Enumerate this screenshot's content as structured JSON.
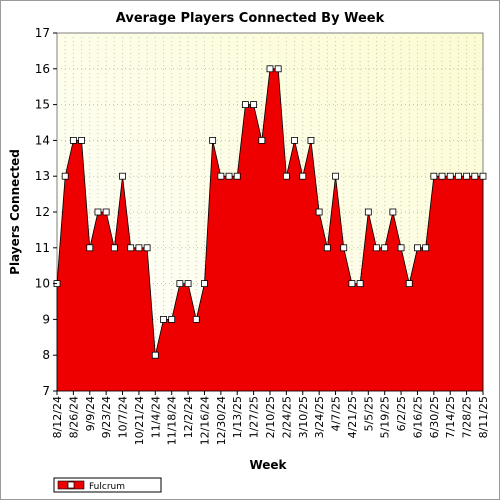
{
  "chart_data": {
    "type": "area",
    "title": "Average Players Connected By Week",
    "xlabel": "Week",
    "ylabel": "Players Connected",
    "ylim": [
      7,
      17
    ],
    "yticks": [
      7,
      8,
      9,
      10,
      11,
      12,
      13,
      14,
      15,
      16,
      17
    ],
    "grid": true,
    "legend_position": "bottom-left",
    "xtick_labels": [
      "8/12/24",
      "8/26/24",
      "9/9/24",
      "9/23/24",
      "10/7/24",
      "10/21/24",
      "11/4/24",
      "11/18/24",
      "12/2/24",
      "12/16/24",
      "12/30/24",
      "1/13/25",
      "1/27/25",
      "2/10/25",
      "2/24/25",
      "3/10/25",
      "3/24/25",
      "4/7/25",
      "4/21/25",
      "5/5/25",
      "5/19/25",
      "6/2/25",
      "6/16/25",
      "6/30/25",
      "7/14/25",
      "7/28/25",
      "8/11/25"
    ],
    "series": [
      {
        "name": "Fulcrum",
        "color": "#ee0000",
        "values": [
          10,
          13,
          14,
          14,
          11,
          12,
          12,
          11,
          13,
          11,
          11,
          11,
          8,
          9,
          9,
          10,
          10,
          9,
          10,
          14,
          13,
          13,
          13,
          15,
          15,
          14,
          16,
          16,
          13,
          14,
          13,
          14,
          12,
          11,
          13,
          11,
          10,
          10,
          12,
          11,
          11,
          12,
          11,
          10,
          11,
          11,
          13,
          13,
          13,
          13,
          13,
          13,
          13
        ]
      }
    ]
  }
}
